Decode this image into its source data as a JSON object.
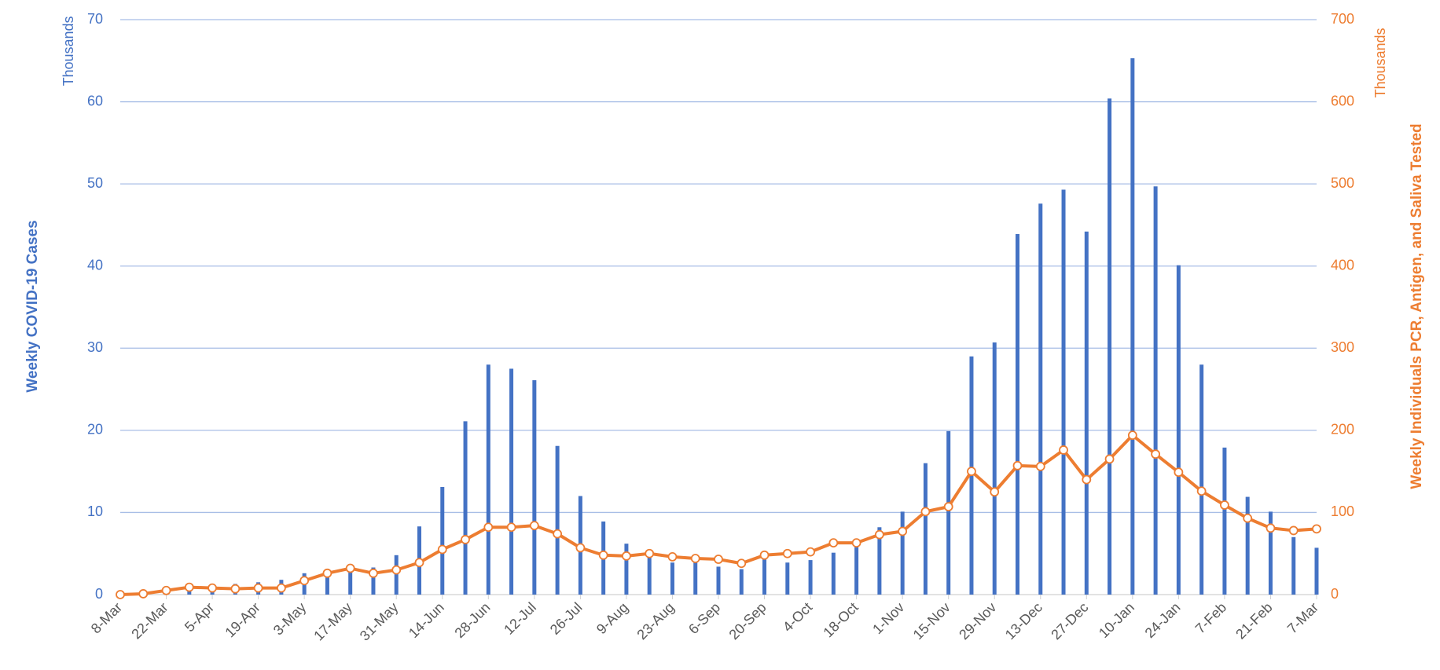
{
  "chart_data": {
    "type": "bar_line",
    "ylabel": "Weekly COVID-19 Cases",
    "y2label": "Weekly Individuals PCR, Antigen, and Saliva  Tested",
    "yunit": "Thousands",
    "y2unit": "Thousands",
    "categories": [
      "8-Mar",
      null,
      "22-Mar",
      null,
      "5-Apr",
      null,
      "19-Apr",
      null,
      "3-May",
      null,
      "17-May",
      null,
      "31-May",
      null,
      "14-Jun",
      null,
      "28-Jun",
      null,
      "12-Jul",
      null,
      "26-Jul",
      null,
      "9-Aug",
      null,
      "23-Aug",
      null,
      "6-Sep",
      null,
      "20-Sep",
      null,
      "4-Oct",
      null,
      "18-Oct",
      null,
      "1-Nov",
      null,
      "15-Nov",
      null,
      "29-Nov",
      null,
      "13-Dec",
      null,
      "27-Dec",
      null,
      "10-Jan",
      null,
      "24-Jan",
      null,
      "7-Feb",
      null,
      "21-Feb",
      null,
      "7-Mar"
    ],
    "series": [
      {
        "type": "bar",
        "color": "#4472c4",
        "values": [
          0.05,
          0.2,
          0.5,
          0.8,
          0.9,
          1.3,
          1.5,
          1.8,
          2.6,
          2.9,
          3.4,
          3.3,
          4.8,
          8.3,
          13.1,
          21.1,
          28.0,
          27.5,
          26.1,
          18.1,
          12.0,
          8.9,
          6.2,
          5.0,
          3.9,
          4.3,
          3.4,
          3.1,
          4.6,
          3.9,
          4.2,
          5.1,
          6.2,
          8.2,
          10.1,
          16.0,
          19.9,
          29.0,
          30.7,
          43.9,
          47.6,
          49.3,
          44.2,
          60.4,
          65.3,
          49.7,
          40.1,
          28.0,
          17.9,
          11.9,
          10.1,
          7.0,
          5.7
        ]
      },
      {
        "type": "line",
        "axis": "y2",
        "color": "#ed7d31",
        "values": [
          0,
          1,
          5,
          9,
          8,
          7,
          8,
          8,
          17,
          26,
          32,
          26,
          30,
          39,
          55,
          67,
          82,
          82,
          84,
          74,
          57,
          48,
          47,
          50,
          46,
          44,
          43,
          38,
          48,
          50,
          52,
          63,
          63,
          73,
          77,
          101,
          107,
          150,
          125,
          157,
          156,
          176,
          140,
          165,
          194,
          171,
          149,
          126,
          109,
          93,
          81,
          78,
          80
        ]
      }
    ],
    "ylim": [
      0,
      70
    ],
    "yticks": [
      0,
      10,
      20,
      30,
      40,
      50,
      60,
      70
    ],
    "y2lim": [
      0,
      700
    ],
    "y2ticks": [
      0,
      100,
      200,
      300,
      400,
      500,
      600,
      700
    ],
    "grid": true
  }
}
